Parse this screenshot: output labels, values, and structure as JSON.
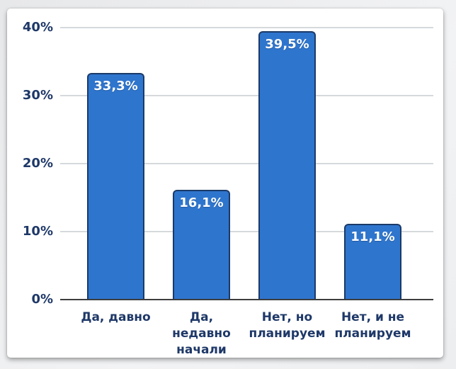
{
  "chart_data": {
    "type": "bar",
    "title": "",
    "xlabel": "",
    "ylabel": "",
    "categories": [
      "Да, давно",
      "Да,\nнедавно\nначали",
      "Нет, но\nпланируем",
      "Нет, и не\nпланируем"
    ],
    "values": [
      33.3,
      16.1,
      39.5,
      11.1
    ],
    "value_labels": [
      "33,3%",
      "16,1%",
      "39,5%",
      "11,1%"
    ],
    "ylim": [
      0,
      40
    ],
    "y_ticks": [
      {
        "value": 0,
        "label": "0%"
      },
      {
        "value": 10,
        "label": "10%"
      },
      {
        "value": 20,
        "label": "20%"
      },
      {
        "value": 30,
        "label": "30%"
      },
      {
        "value": 40,
        "label": "40%"
      }
    ],
    "grid": true,
    "legend": false,
    "colors": {
      "bar_fill": "#2e75ce",
      "bar_border": "#1b3a68",
      "axis_text": "#1e3868",
      "value_text": "#ffffff",
      "gridline": "#d6d9dc",
      "axis_line": "#3d3d3d",
      "card_bg": "#ffffff",
      "page_bg": "#edeef0"
    }
  }
}
